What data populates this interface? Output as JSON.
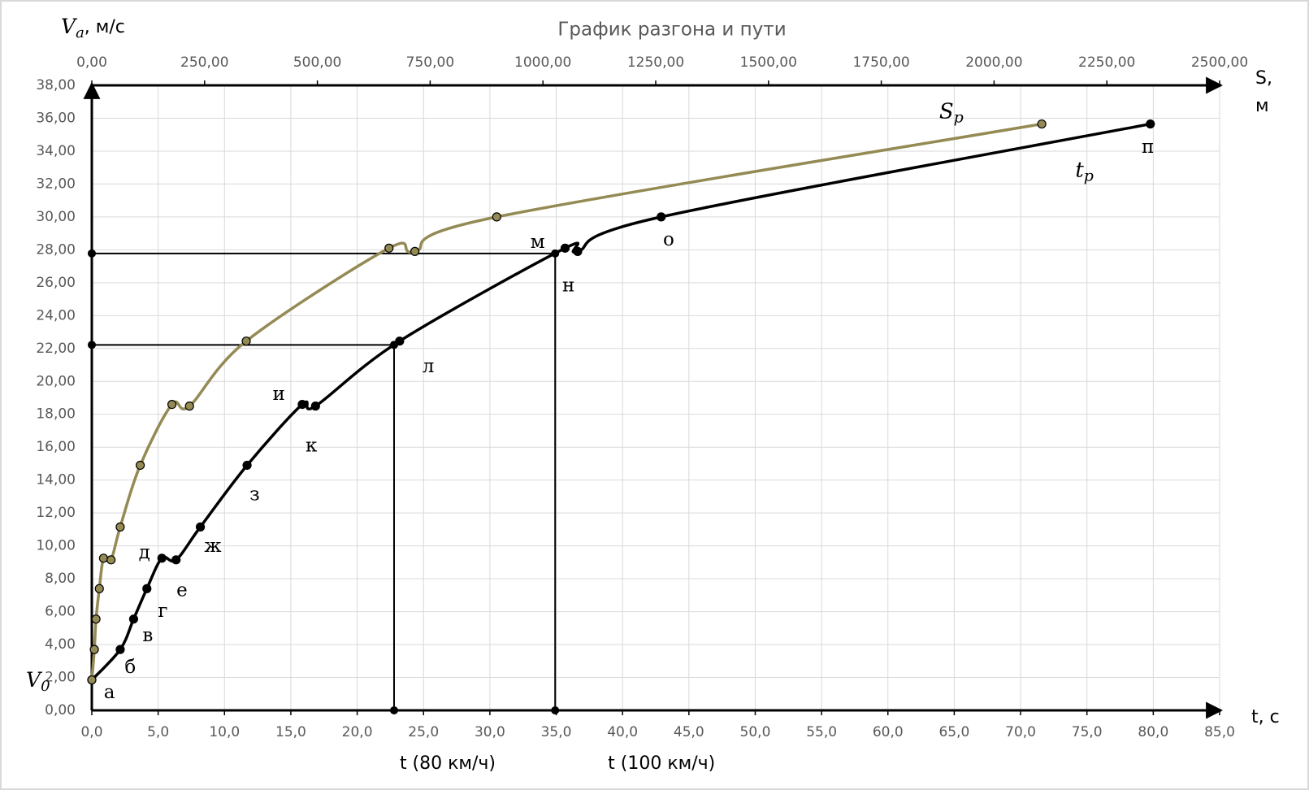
{
  "chart_data": {
    "type": "line",
    "title": "График разгона и пути",
    "y_label": {
      "symbol": "V",
      "subscript": "a",
      "unit": ", м/с"
    },
    "x_label": "t, с",
    "x2_label": [
      "S,",
      "м"
    ],
    "v0_label": {
      "symbol": "V",
      "subscript": "0"
    },
    "xlim": [
      0,
      85
    ],
    "x2lim": [
      0,
      2500
    ],
    "ylim": [
      0,
      38
    ],
    "grid": true,
    "xticks": [
      {
        "value": 0,
        "label": "0,0"
      },
      {
        "value": 5,
        "label": "5,0"
      },
      {
        "value": 10,
        "label": "10,0"
      },
      {
        "value": 15,
        "label": "15,0"
      },
      {
        "value": 20,
        "label": "20,0"
      },
      {
        "value": 25,
        "label": "25,0"
      },
      {
        "value": 30,
        "label": "30,0"
      },
      {
        "value": 35,
        "label": "35,0"
      },
      {
        "value": 40,
        "label": "40,0"
      },
      {
        "value": 45,
        "label": "45,0"
      },
      {
        "value": 50,
        "label": "50,0"
      },
      {
        "value": 55,
        "label": "55,0"
      },
      {
        "value": 60,
        "label": "60,0"
      },
      {
        "value": 65,
        "label": "65,0"
      },
      {
        "value": 70,
        "label": "70,0"
      },
      {
        "value": 75,
        "label": "75,0"
      },
      {
        "value": 80,
        "label": "80,0"
      },
      {
        "value": 85,
        "label": "85,0"
      }
    ],
    "x2ticks": [
      {
        "value": 0,
        "label": "0,00"
      },
      {
        "value": 250,
        "label": "250,00"
      },
      {
        "value": 500,
        "label": "500,00"
      },
      {
        "value": 750,
        "label": "750,00"
      },
      {
        "value": 1000,
        "label": "1000,00"
      },
      {
        "value": 1250,
        "label": "1250,00"
      },
      {
        "value": 1500,
        "label": "1500,00"
      },
      {
        "value": 1750,
        "label": "1750,00"
      },
      {
        "value": 2000,
        "label": "2000,00"
      },
      {
        "value": 2250,
        "label": "2250,00"
      },
      {
        "value": 2500,
        "label": "2500,00"
      }
    ],
    "yticks": [
      {
        "value": 0,
        "label": "0,00"
      },
      {
        "value": 2,
        "label": "2,00"
      },
      {
        "value": 4,
        "label": "4,00"
      },
      {
        "value": 6,
        "label": "6,00"
      },
      {
        "value": 8,
        "label": "8,00"
      },
      {
        "value": 10,
        "label": "10,00"
      },
      {
        "value": 12,
        "label": "12,00"
      },
      {
        "value": 14,
        "label": "14,00"
      },
      {
        "value": 16,
        "label": "16,00"
      },
      {
        "value": 18,
        "label": "18,00"
      },
      {
        "value": 20,
        "label": "20,00"
      },
      {
        "value": 22,
        "label": "22,00"
      },
      {
        "value": 24,
        "label": "24,00"
      },
      {
        "value": 26,
        "label": "26,00"
      },
      {
        "value": 28,
        "label": "28,00"
      },
      {
        "value": 30,
        "label": "30,00"
      },
      {
        "value": 32,
        "label": "32,00"
      },
      {
        "value": 34,
        "label": "34,00"
      },
      {
        "value": 36,
        "label": "36,00"
      },
      {
        "value": 38,
        "label": "38,00"
      }
    ],
    "series": [
      {
        "name": "t",
        "name_sub": "p",
        "color": "#000000",
        "axis": "x",
        "x": [
          0,
          2.14,
          3.15,
          4.15,
          5.28,
          6.35,
          8.18,
          11.7,
          15.86,
          16.86,
          23.2,
          35.67,
          36.62,
          42.91,
          79.78
        ],
        "values": [
          1.85,
          3.7,
          5.55,
          7.4,
          9.25,
          9.15,
          11.15,
          14.9,
          18.6,
          18.5,
          22.45,
          28.1,
          27.9,
          30.0,
          35.65
        ]
      },
      {
        "name": "S",
        "name_sub": "p",
        "color": "#948a54",
        "axis": "x2",
        "x": [
          0,
          5.6,
          9.3,
          16.7,
          25.9,
          42.6,
          62.9,
          107.3,
          177.6,
          216.5,
          342.3,
          658.8,
          716.1,
          897.5,
          2105.8
        ],
        "values": [
          1.85,
          3.7,
          5.55,
          7.4,
          9.25,
          9.15,
          11.15,
          14.9,
          18.6,
          18.5,
          22.45,
          28.1,
          27.9,
          30.0,
          35.65
        ]
      }
    ],
    "reference_lines": [
      {
        "x": 22.78,
        "y": 22.22,
        "label": "t (80 км/ч)"
      },
      {
        "x": 34.92,
        "y": 27.78,
        "label": "t (100 км/ч)"
      }
    ],
    "point_labels": [
      "а",
      "б",
      "в",
      "г",
      "д",
      "е",
      "ж",
      "з",
      "и",
      "к",
      "л",
      "м",
      "н",
      "о",
      "п"
    ]
  }
}
